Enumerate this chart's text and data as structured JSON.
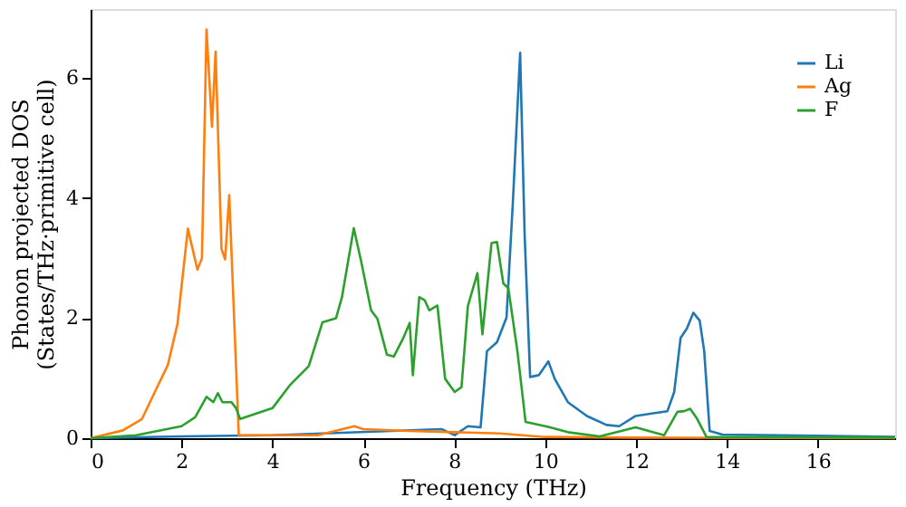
{
  "chart_data": {
    "type": "line",
    "xlabel": "Frequency (THz)",
    "ylabel": "Phonon projected DOS\n(States/THz·primitive cell)",
    "xlim": [
      0,
      17.7
    ],
    "ylim": [
      0,
      7.15
    ],
    "xticks": [
      0,
      2,
      4,
      6,
      8,
      10,
      12,
      14,
      16
    ],
    "yticks": [
      0,
      2,
      4,
      6
    ],
    "grid": false,
    "legend": "top right",
    "line_style": "solid",
    "series": [
      {
        "name": "Li",
        "color": "#1f77b4",
        "x": [
          0,
          2,
          4,
          7.73,
          8.01,
          8.3,
          8.58,
          8.72,
          8.94,
          9.15,
          9.29,
          9.45,
          9.55,
          9.67,
          9.86,
          10.07,
          10.21,
          10.5,
          10.92,
          11.35,
          11.63,
          11.99,
          12.34,
          12.69,
          12.84,
          12.98,
          13.12,
          13.26,
          13.4,
          13.5,
          13.62,
          13.9,
          16,
          17.7
        ],
        "values": [
          0,
          0.03,
          0.05,
          0.15,
          0.05,
          0.2,
          0.18,
          1.45,
          1.6,
          2.01,
          3.93,
          6.42,
          3.37,
          1.02,
          1.05,
          1.28,
          0.99,
          0.6,
          0.37,
          0.22,
          0.2,
          0.37,
          0.41,
          0.45,
          0.77,
          1.67,
          1.83,
          2.09,
          1.96,
          1.45,
          0.12,
          0.06,
          0.04,
          0.02
        ]
      },
      {
        "name": "Ag",
        "color": "#ff7f0e",
        "x": [
          0,
          0.71,
          1.13,
          1.42,
          1.7,
          1.91,
          2.14,
          2.35,
          2.45,
          2.55,
          2.67,
          2.75,
          2.88,
          2.96,
          3.05,
          3.26,
          5.0,
          5.8,
          6.0,
          7.0,
          8.0,
          9.0,
          10.0,
          12.0,
          17.7
        ],
        "values": [
          0,
          0.13,
          0.32,
          0.78,
          1.22,
          1.9,
          3.49,
          2.81,
          3.0,
          6.81,
          5.19,
          6.44,
          3.15,
          2.98,
          4.05,
          0.05,
          0.05,
          0.2,
          0.15,
          0.12,
          0.1,
          0.08,
          0.02,
          0.01,
          0
        ]
      },
      {
        "name": "F",
        "color": "#2ca02c",
        "x": [
          0,
          1,
          2,
          2.3,
          2.55,
          2.7,
          2.8,
          2.9,
          3.1,
          3.2,
          3.29,
          4.0,
          4.38,
          4.8,
          5.1,
          5.4,
          5.53,
          5.79,
          5.96,
          6.17,
          6.31,
          6.52,
          6.67,
          6.88,
          7.02,
          7.09,
          7.23,
          7.35,
          7.45,
          7.63,
          7.8,
          8.01,
          8.16,
          8.3,
          8.51,
          8.62,
          8.82,
          8.94,
          9.08,
          9.19,
          9.39,
          9.57,
          10.07,
          10.5,
          11.2,
          11.99,
          12.62,
          12.91,
          13.06,
          13.19,
          13.33,
          13.55,
          17.7
        ],
        "values": [
          0,
          0.05,
          0.2,
          0.35,
          0.69,
          0.6,
          0.75,
          0.6,
          0.6,
          0.5,
          0.32,
          0.5,
          0.88,
          1.2,
          1.93,
          2.0,
          2.35,
          3.5,
          2.92,
          2.13,
          1.99,
          1.39,
          1.36,
          1.67,
          1.92,
          1.05,
          2.35,
          2.3,
          2.13,
          2.21,
          0.99,
          0.77,
          0.85,
          2.2,
          2.75,
          1.73,
          3.25,
          3.27,
          2.58,
          2.5,
          1.45,
          0.27,
          0.19,
          0.1,
          0.03,
          0.18,
          0.05,
          0.44,
          0.45,
          0.49,
          0.34,
          0.02,
          0.01
        ]
      }
    ]
  }
}
